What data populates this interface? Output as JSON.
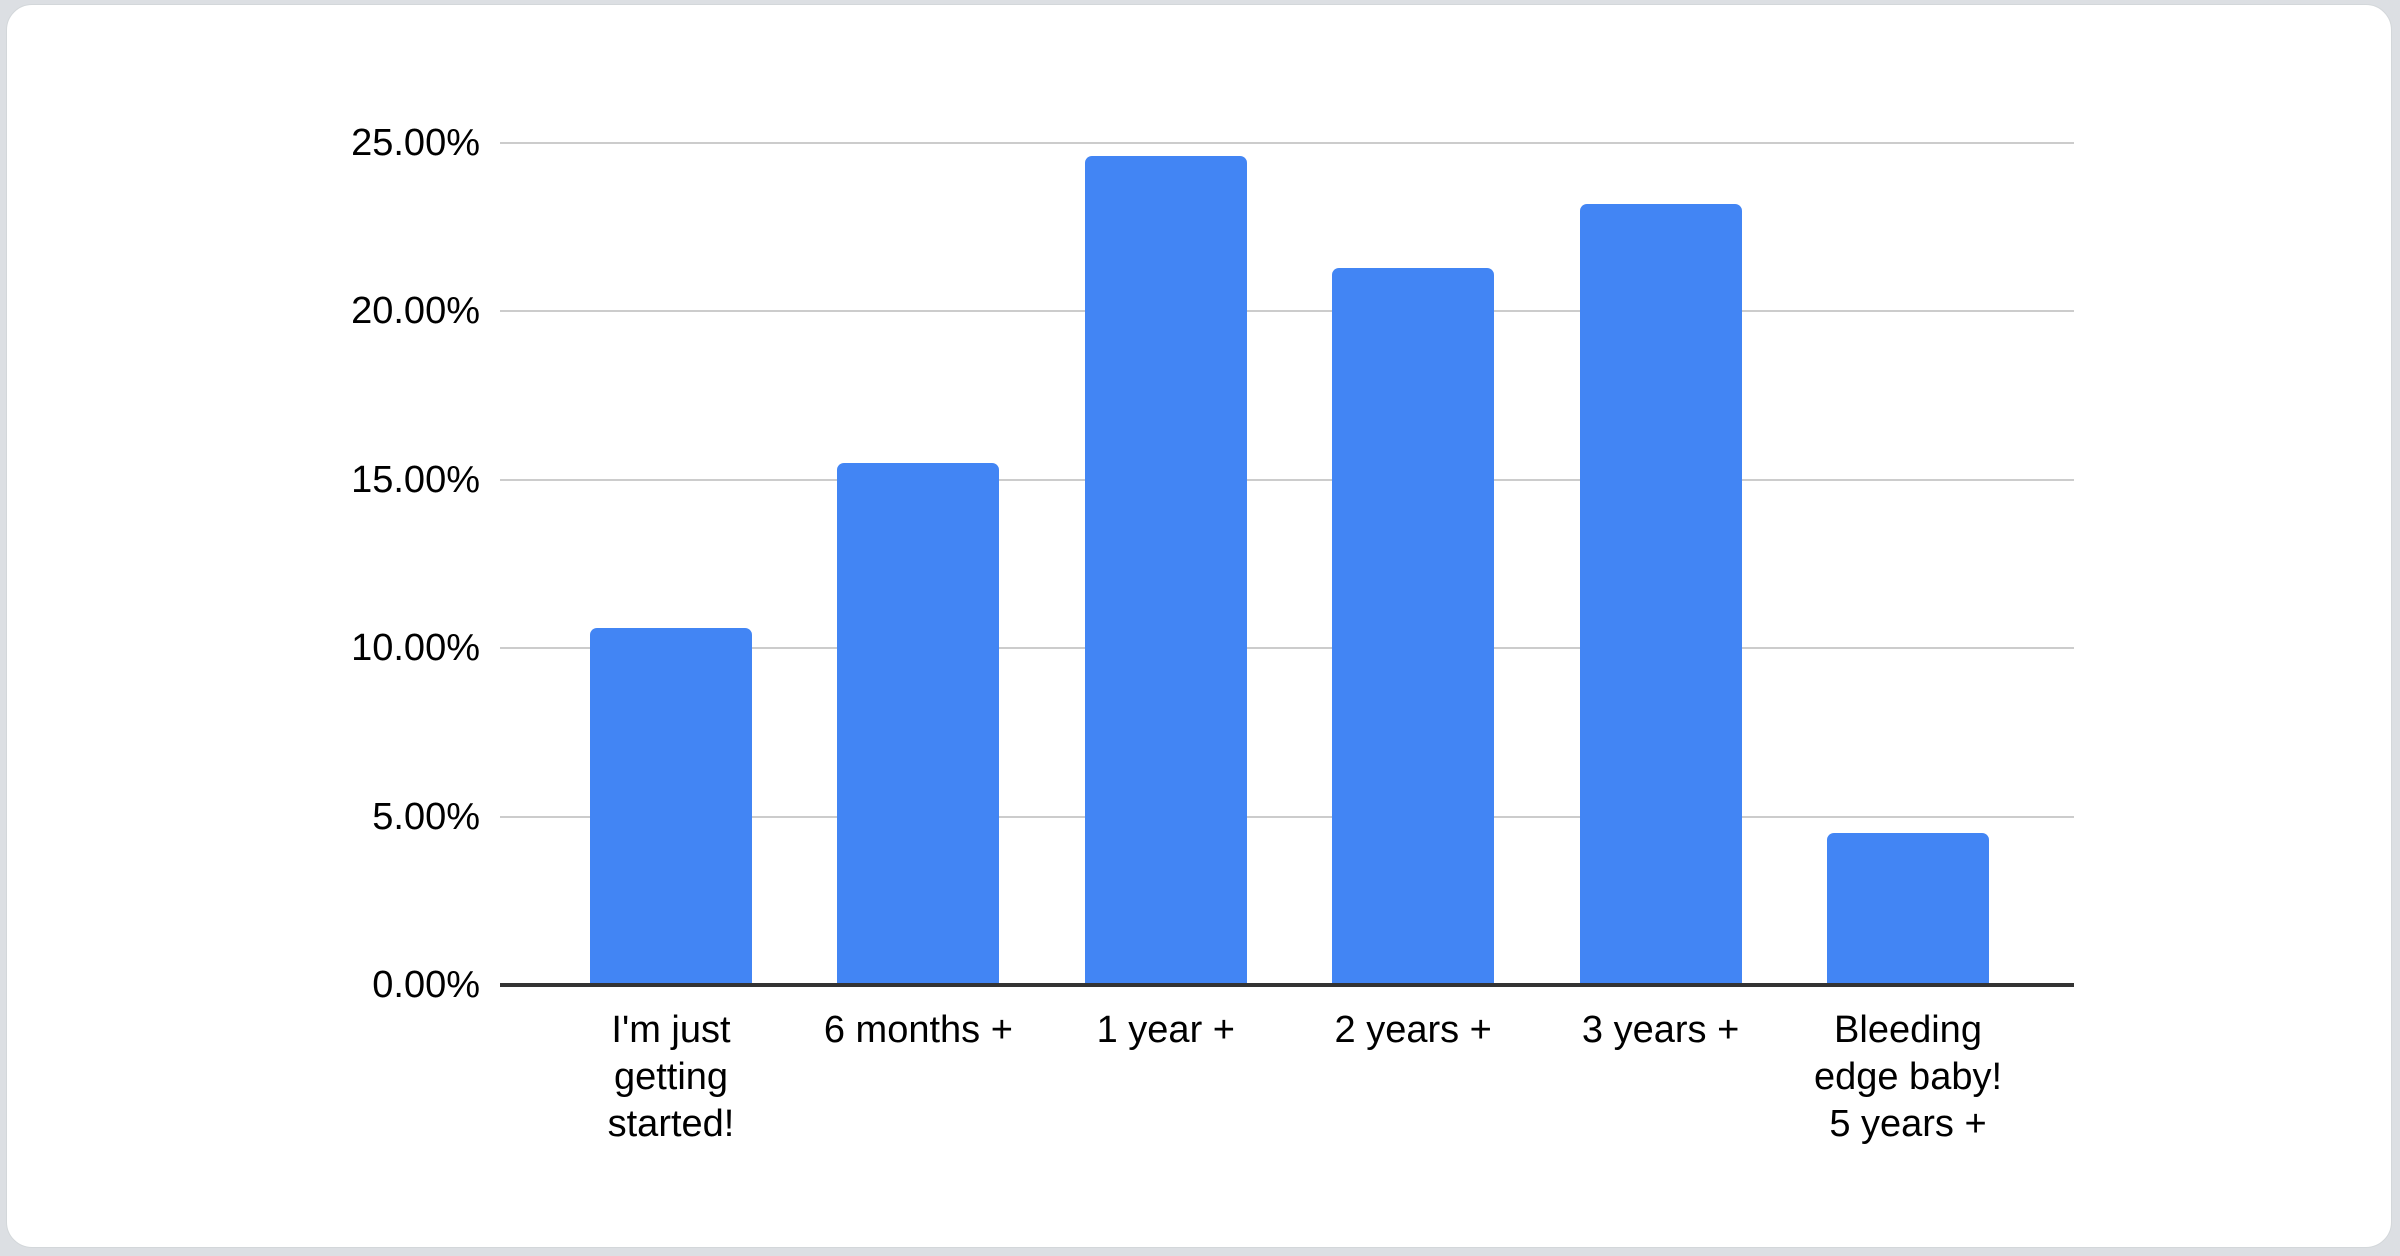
{
  "chart_data": {
    "type": "bar",
    "title": "",
    "xlabel": "",
    "ylabel": "",
    "categories": [
      "I'm just getting started!",
      "6 months +",
      "1 year +",
      "2 years +",
      "3 years +",
      "Bleeding edge baby! 5 years +"
    ],
    "category_lines": [
      [
        "I'm just",
        "getting",
        "started!"
      ],
      [
        "6 months +"
      ],
      [
        "1 year +"
      ],
      [
        "2 years +"
      ],
      [
        "3 years +"
      ],
      [
        "Bleeding",
        "edge baby!",
        "5 years +"
      ]
    ],
    "values": [
      10.6,
      15.5,
      24.6,
      21.3,
      23.2,
      4.5
    ],
    "ylim": [
      0,
      25
    ],
    "ytick_step": 5,
    "ytick_labels": [
      "0.00%",
      "5.00%",
      "10.00%",
      "15.00%",
      "20.00%",
      "25.00%"
    ],
    "grid": true,
    "legend": "none",
    "colors": {
      "bar": "#4285F4",
      "gridline": "#cccccc",
      "axis": "#333333",
      "text": "#000000",
      "card_background": "#ffffff",
      "page_background": "#dcdfe3"
    }
  }
}
